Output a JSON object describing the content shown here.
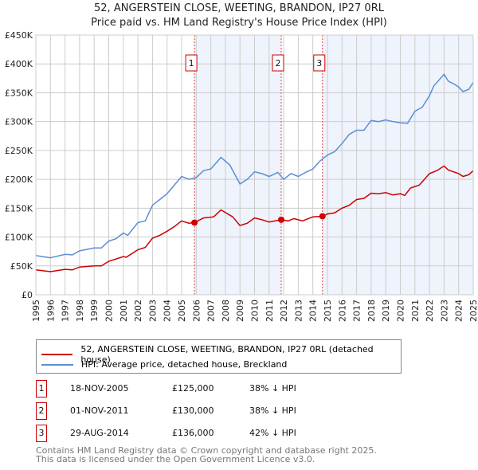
{
  "title": "52, ANGERSTEIN CLOSE, WEETING, BRANDON, IP27 0RL",
  "subtitle": "Price paid vs. HM Land Registry's House Price Index (HPI)",
  "colors": {
    "property": "#cc0000",
    "hpi": "#5b8fd4",
    "shade": "#eef3fc",
    "marker": "#cc0000"
  },
  "chart_data": {
    "type": "line",
    "title": "52, ANGERSTEIN CLOSE, WEETING, BRANDON, IP27 0RL",
    "xlim": [
      1995,
      2025
    ],
    "ylim": [
      0,
      450000
    ],
    "xticks": [
      "1995",
      "1996",
      "1997",
      "1998",
      "1999",
      "2000",
      "2001",
      "2002",
      "2003",
      "2004",
      "2005",
      "2006",
      "2007",
      "2008",
      "2009",
      "2010",
      "2011",
      "2012",
      "2013",
      "2014",
      "2015",
      "2016",
      "2017",
      "2018",
      "2019",
      "2020",
      "2021",
      "2022",
      "2023",
      "2024",
      "2025"
    ],
    "yticks": [
      {
        "v": 0,
        "label": "£0"
      },
      {
        "v": 50000,
        "label": "£50K"
      },
      {
        "v": 100000,
        "label": "£100K"
      },
      {
        "v": 150000,
        "label": "£150K"
      },
      {
        "v": 200000,
        "label": "£200K"
      },
      {
        "v": 250000,
        "label": "£250K"
      },
      {
        "v": 300000,
        "label": "£300K"
      },
      {
        "v": 350000,
        "label": "£350K"
      },
      {
        "v": 400000,
        "label": "£400K"
      },
      {
        "v": 450000,
        "label": "£450K"
      }
    ],
    "grid": true,
    "shaded_ranges": [
      [
        2005.88,
        2011.83
      ],
      [
        2014.66,
        2025
      ]
    ],
    "series": [
      {
        "name": "52, ANGERSTEIN CLOSE, WEETING, BRANDON, IP27 0RL (detached house)",
        "color": "#cc0000",
        "x": [
          1995,
          1996,
          1997,
          1997.5,
          1998,
          1999,
          1999.5,
          2000,
          2001,
          2001.2,
          2002,
          2002.5,
          2003,
          2003.5,
          2004,
          2004.5,
          2005,
          2005.5,
          2005.88,
          2006.5,
          2007.2,
          2007.7,
          2008.5,
          2009,
          2009.5,
          2010,
          2010.5,
          2011,
          2011.83,
          2012.3,
          2012.7,
          2013.3,
          2014,
          2014.66,
          2015,
          2015.5,
          2016,
          2016.5,
          2017,
          2017.5,
          2018,
          2018.5,
          2019,
          2019.5,
          2020,
          2020.3,
          2020.7,
          2021.3,
          2022,
          2022.5,
          2023,
          2023.3,
          2024,
          2024.3,
          2024.7,
          2025
        ],
        "y": [
          43000,
          40000,
          44000,
          43000,
          48000,
          50000,
          50000,
          58000,
          66000,
          65000,
          78000,
          82000,
          98000,
          103000,
          110000,
          118000,
          128000,
          124000,
          125000,
          133000,
          135000,
          147000,
          135000,
          120000,
          124000,
          133000,
          130000,
          126000,
          130000,
          128000,
          132000,
          128000,
          135000,
          136000,
          140000,
          142000,
          150000,
          155000,
          165000,
          167000,
          176000,
          175000,
          177000,
          173000,
          175000,
          172000,
          185000,
          190000,
          210000,
          215000,
          223000,
          216000,
          210000,
          205000,
          208000,
          215000
        ]
      },
      {
        "name": "HPI: Average price, detached house, Breckland",
        "color": "#5b8fd4",
        "x": [
          1995,
          1995.5,
          1996,
          1997,
          1997.5,
          1998,
          1999,
          1999.5,
          2000,
          2000.5,
          2001,
          2001.3,
          2002,
          2002.5,
          2003,
          2003.5,
          2004,
          2004.5,
          2005,
          2005.5,
          2006,
          2006.5,
          2007,
          2007.7,
          2008.3,
          2009,
          2009.5,
          2010,
          2010.5,
          2011,
          2011.6,
          2012,
          2012.5,
          2013,
          2013.5,
          2014,
          2014.5,
          2015,
          2015.5,
          2016,
          2016.5,
          2017,
          2017.5,
          2018,
          2018.5,
          2019,
          2019.5,
          2020,
          2020.5,
          2021,
          2021.5,
          2022,
          2022.3,
          2023,
          2023.3,
          2023.7,
          2024,
          2024.3,
          2024.7,
          2025
        ],
        "y": [
          68000,
          66000,
          64000,
          70000,
          69000,
          76000,
          81000,
          81000,
          93000,
          97000,
          107000,
          103000,
          125000,
          128000,
          155000,
          165000,
          175000,
          190000,
          205000,
          200000,
          203000,
          215000,
          218000,
          238000,
          225000,
          192000,
          200000,
          213000,
          210000,
          205000,
          212000,
          200000,
          210000,
          205000,
          212000,
          218000,
          232000,
          242000,
          248000,
          262000,
          278000,
          285000,
          285000,
          302000,
          300000,
          303000,
          300000,
          298000,
          297000,
          318000,
          325000,
          345000,
          362000,
          382000,
          370000,
          365000,
          360000,
          352000,
          356000,
          368000
        ]
      }
    ],
    "sales": [
      {
        "id": "1",
        "x": 2005.88,
        "y": 125000,
        "date": "18-NOV-2005",
        "price": "£125,000",
        "hpi": "38% ↓ HPI"
      },
      {
        "id": "2",
        "x": 2011.83,
        "y": 130000,
        "date": "01-NOV-2011",
        "price": "£130,000",
        "hpi": "38% ↓ HPI"
      },
      {
        "id": "3",
        "x": 2014.66,
        "y": 136000,
        "date": "29-AUG-2014",
        "price": "£136,000",
        "hpi": "42% ↓ HPI"
      }
    ],
    "legend_position": "below"
  },
  "footer": {
    "line1": "Contains HM Land Registry data © Crown copyright and database right 2025.",
    "line2": "This data is licensed under the Open Government Licence v3.0."
  }
}
